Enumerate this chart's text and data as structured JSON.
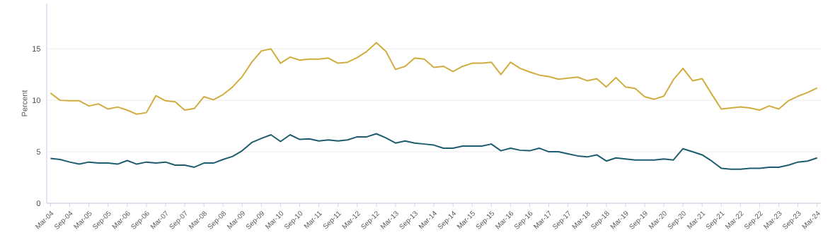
{
  "chart_data": {
    "type": "line",
    "ylabel": "Percent",
    "categories": [
      "Mar-04",
      null,
      "Sep-04",
      null,
      "Mar-05",
      null,
      "Sep-05",
      null,
      "Mar-06",
      null,
      "Sep-06",
      null,
      "Mar-07",
      null,
      "Sep-07",
      null,
      "Mar-08",
      null,
      "Sep-08",
      null,
      "Mar-09",
      null,
      "Sep-09",
      null,
      "Mar-10",
      null,
      "Sep-10",
      null,
      "Mar-11",
      null,
      "Sep-11",
      null,
      "Mar-12",
      null,
      "Sep-12",
      null,
      "Mar-13",
      null,
      "Sep-13",
      null,
      "Mar-14",
      null,
      "Sep-14",
      null,
      "Mar-15",
      null,
      "Sep-15",
      null,
      "Mar-16",
      null,
      "Sep-16",
      null,
      "Mar-17",
      null,
      "Sep-17",
      null,
      "Mar-18",
      null,
      "Sep-18",
      null,
      "Mar-19",
      null,
      "Sep-19",
      null,
      "Mar-20",
      null,
      "Sep-20",
      null,
      "Mar-21",
      null,
      "Sep-21",
      null,
      "Mar-22",
      null,
      "Sep-22",
      null,
      "Mar-23",
      null,
      "Sep-23",
      null,
      "Mar-24"
    ],
    "series": [
      {
        "color": "#d1ac3e",
        "values": [
          10.7,
          10.0,
          9.95,
          9.95,
          9.45,
          9.65,
          9.15,
          9.35,
          9.05,
          8.65,
          8.8,
          10.45,
          9.95,
          9.85,
          9.05,
          9.2,
          10.35,
          10.05,
          10.55,
          11.3,
          12.3,
          13.7,
          14.8,
          15.0,
          13.6,
          14.2,
          13.9,
          14.0,
          14.0,
          14.1,
          13.6,
          13.7,
          14.15,
          14.75,
          15.6,
          14.75,
          13.0,
          13.3,
          14.1,
          14.0,
          13.2,
          13.3,
          12.8,
          13.3,
          13.6,
          13.6,
          13.7,
          12.5,
          13.7,
          13.1,
          12.75,
          12.45,
          12.3,
          12.05,
          12.15,
          12.25,
          11.9,
          12.1,
          11.3,
          12.2,
          11.3,
          11.15,
          10.35,
          10.1,
          10.4,
          12.0,
          13.1,
          11.9,
          12.1,
          10.6,
          9.15,
          9.25,
          9.35,
          9.25,
          9.05,
          9.45,
          9.15,
          9.95,
          10.4,
          10.75,
          11.2
        ]
      },
      {
        "color": "#1d5c6e",
        "values": [
          4.35,
          4.25,
          4.0,
          3.8,
          4.0,
          3.9,
          3.9,
          3.8,
          4.15,
          3.8,
          4.0,
          3.9,
          4.0,
          3.7,
          3.7,
          3.5,
          3.9,
          3.9,
          4.25,
          4.55,
          5.1,
          5.9,
          6.3,
          6.65,
          6.0,
          6.65,
          6.2,
          6.25,
          6.05,
          6.15,
          6.05,
          6.15,
          6.45,
          6.45,
          6.75,
          6.35,
          5.85,
          6.05,
          5.85,
          5.75,
          5.65,
          5.35,
          5.35,
          5.55,
          5.55,
          5.55,
          5.75,
          5.1,
          5.35,
          5.15,
          5.1,
          5.35,
          5.0,
          5.0,
          4.8,
          4.6,
          4.5,
          4.7,
          4.1,
          4.4,
          4.3,
          4.2,
          4.2,
          4.2,
          4.3,
          4.2,
          5.3,
          5.0,
          4.7,
          4.1,
          3.4,
          3.3,
          3.3,
          3.4,
          3.4,
          3.5,
          3.5,
          3.7,
          4.0,
          4.1,
          4.4
        ]
      }
    ],
    "ylim": [
      0,
      19.4
    ],
    "yticks": [
      0,
      5,
      10,
      15
    ],
    "grid": "y",
    "legend": false,
    "marker": "none",
    "line_style": "solid"
  }
}
